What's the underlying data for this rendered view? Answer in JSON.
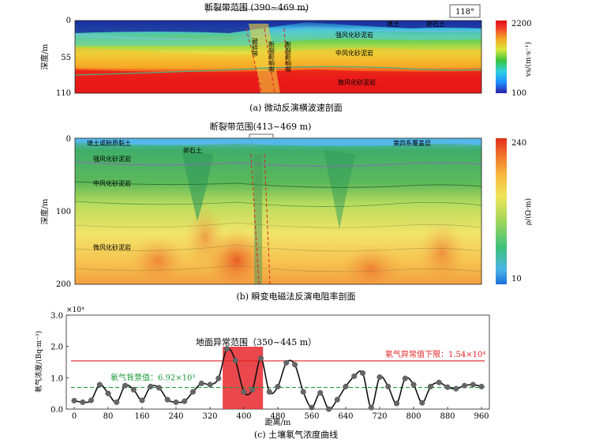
{
  "panel_a": {
    "range_label": "断裂带范围 (390~469 m)",
    "azimuth": "118°",
    "ylabel": "深度/m",
    "yticks": [
      "0",
      "55",
      "110"
    ],
    "layer_labels": [
      "填土",
      "卵石土",
      "强风化砂泥岩",
      "中风化砂泥岩",
      "微风化砂泥岩"
    ],
    "zone_labels": [
      "破碎带",
      "断裂影响带",
      "断裂影响带"
    ],
    "colorbar_max": "2200",
    "colorbar_min": "100",
    "colorbar_label": "vs/(m·s⁻¹)",
    "caption": "(a) 微动反演横波速剖面"
  },
  "panel_b": {
    "range_label": "断裂带范围(413~469 m)",
    "ylabel": "深度/m",
    "yticks": [
      "0",
      "100",
      "200"
    ],
    "layer_labels": [
      "填土或粉质黏土",
      "卵石土",
      "第四系覆盖层",
      "强风化砂泥岩",
      "中风化砂泥岩",
      "微风化砂泥岩"
    ],
    "colorbar_max": "240",
    "colorbar_min": "10",
    "colorbar_label": "ρ/(Ω·m)",
    "caption": "(b) 瞬变电磁法反演电阻率剖面"
  },
  "panel_c": {
    "caption": "(c) 土壤氡气浓度曲线",
    "anomaly_label": "地面异常范围（350~445 m）",
    "threshold_label": "氡气异常值下限：1.54×10⁴",
    "background_label": "氡气背景值：6.92×10³",
    "multiplier": "×10⁴"
  },
  "chart_data": {
    "type": "line",
    "title": "",
    "xlabel": "距离/m",
    "ylabel": "氡气浓度/(Bq·m⁻³)",
    "xlim": [
      0,
      960
    ],
    "ylim": [
      0,
      3.0
    ],
    "xticks": [
      0,
      80,
      160,
      240,
      320,
      400,
      480,
      560,
      640,
      720,
      800,
      880,
      960
    ],
    "yticks": [
      0,
      1.0,
      2.0,
      3.0
    ],
    "threshold": 1.54,
    "background": 0.692,
    "anomaly_range": [
      350,
      445
    ],
    "series": [
      {
        "x": [
          0,
          20,
          40,
          60,
          80,
          100,
          120,
          140,
          160,
          180,
          200,
          220,
          240,
          260,
          280,
          300,
          320,
          340,
          360,
          380,
          400,
          420,
          440,
          460,
          480,
          500,
          520,
          540,
          560,
          580,
          600,
          620,
          640,
          660,
          680,
          700,
          720,
          740,
          760,
          780,
          800,
          820,
          840,
          860,
          880,
          900,
          920,
          940,
          960
        ],
        "y": [
          0.27,
          0.22,
          0.28,
          0.78,
          0.5,
          0.22,
          0.75,
          0.62,
          0.28,
          0.72,
          0.68,
          0.3,
          0.22,
          0.25,
          0.55,
          0.82,
          0.78,
          0.98,
          1.92,
          1.55,
          0.55,
          0.62,
          1.62,
          0.55,
          0.72,
          1.48,
          1.42,
          0.55,
          0.05,
          0.52,
          0.0,
          0.3,
          0.72,
          1.05,
          1.15,
          0.05,
          1.02,
          0.72,
          0.18,
          0.98,
          0.78,
          0.2,
          0.72,
          0.85,
          0.7,
          0.65,
          0.75,
          0.78,
          0.72
        ]
      }
    ]
  }
}
